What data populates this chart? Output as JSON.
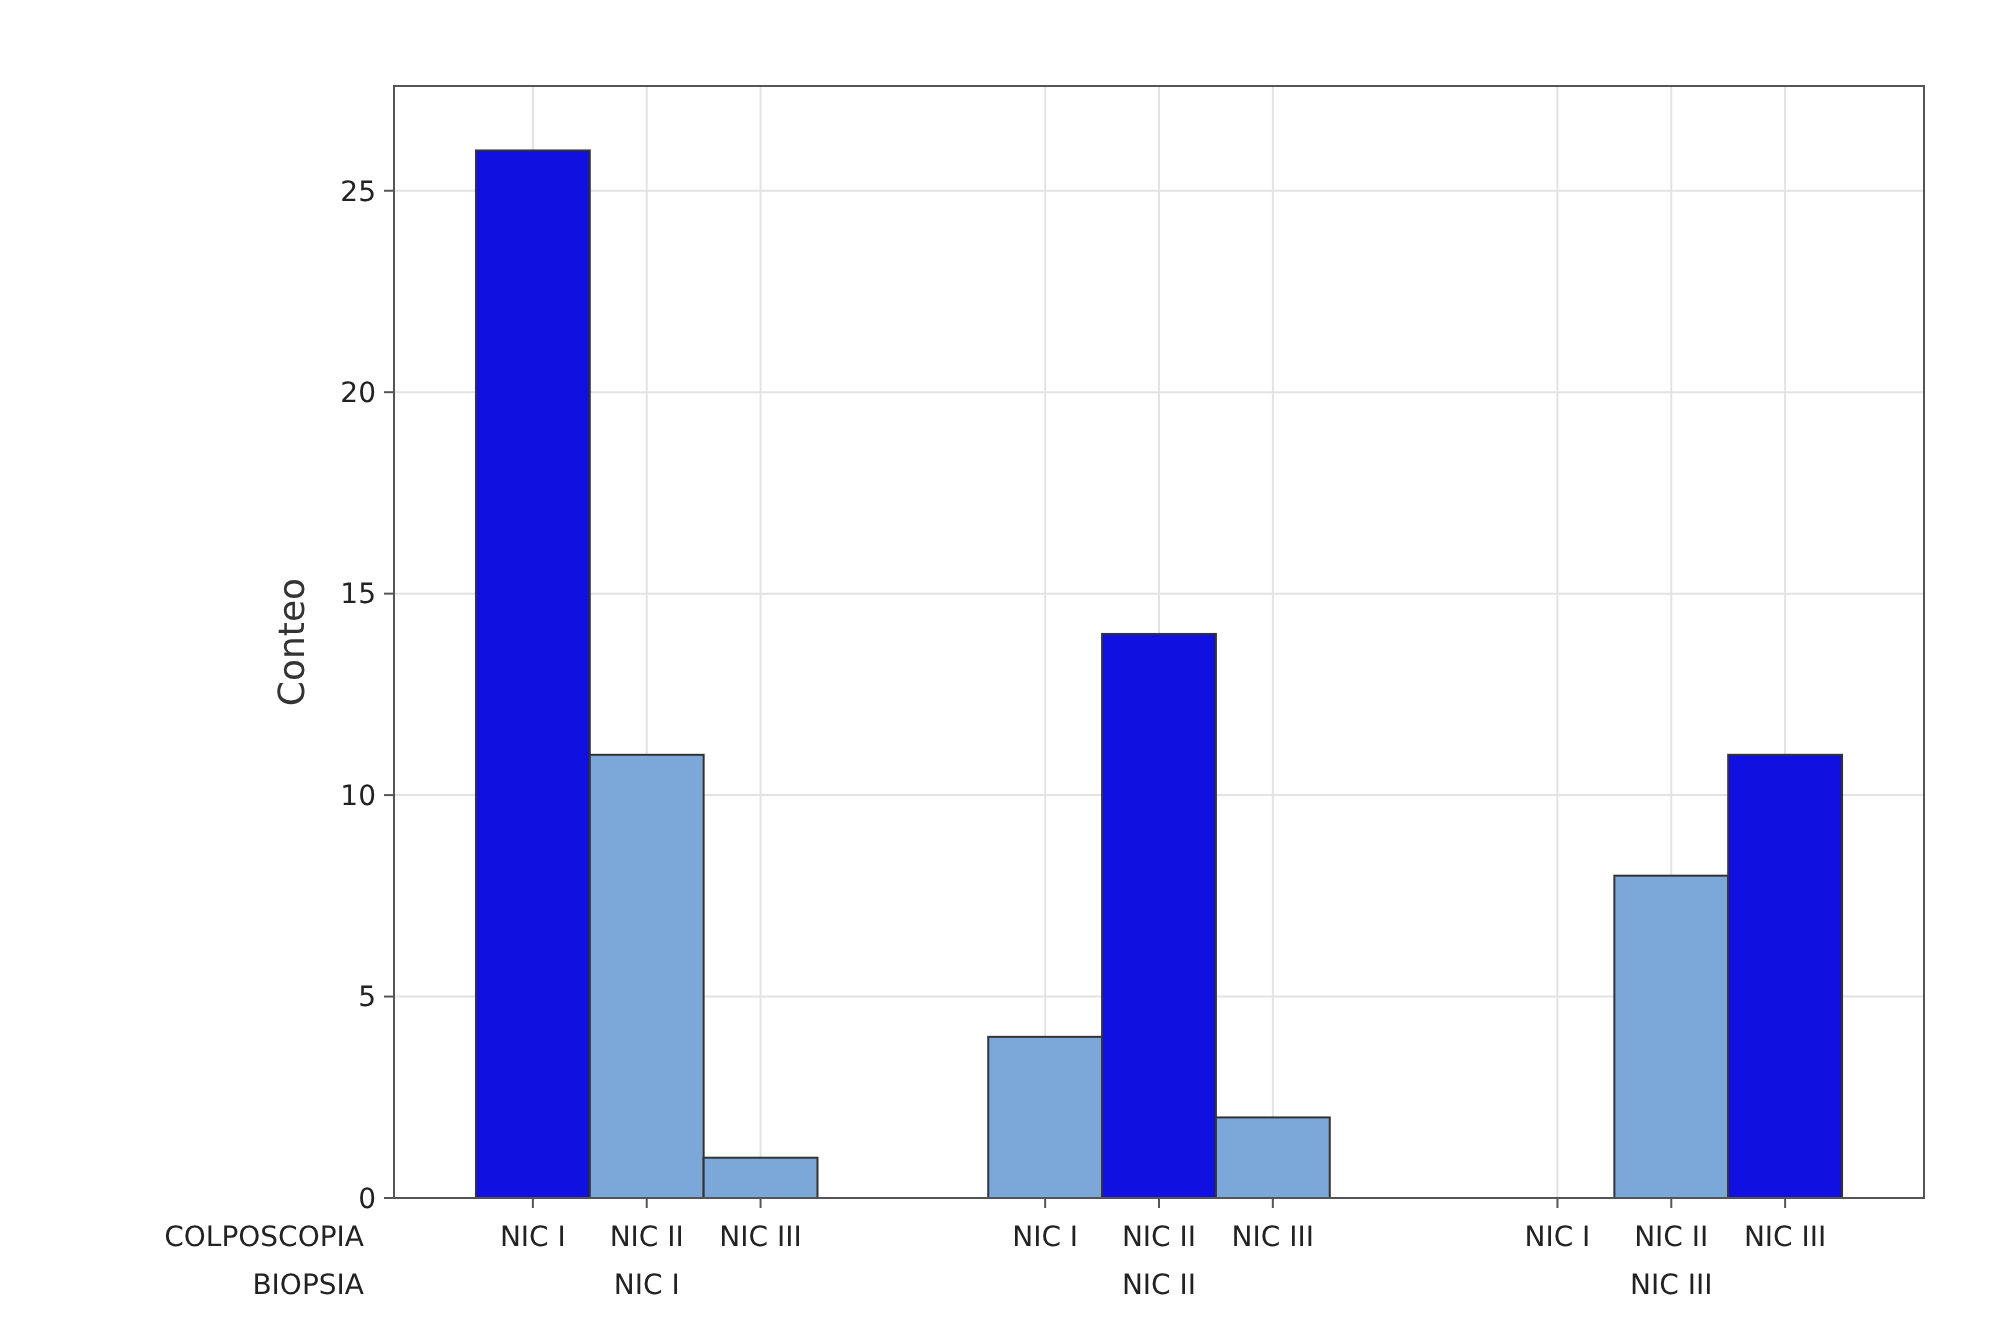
{
  "chart_data": {
    "type": "bar",
    "ylabel": "Conteo",
    "categories": [
      "NIC I",
      "NIC II",
      "NIC III"
    ],
    "series": [
      {
        "name": "NIC I",
        "colors": [
          "#1010e0",
          "#7ba7d9",
          "#7ba7d9"
        ],
        "values": [
          26,
          4,
          0
        ]
      },
      {
        "name": "NIC II",
        "colors": [
          "#7ba7d9",
          "#1010e0",
          "#7ba7d9"
        ],
        "values": [
          11,
          14,
          8
        ]
      },
      {
        "name": "NIC III",
        "colors": [
          "#7ba7d9",
          "#7ba7d9",
          "#1010e0"
        ],
        "values": [
          1,
          2,
          11
        ]
      }
    ],
    "annotations": [
      "COLPOSCOPIA",
      "BIOPSIA"
    ],
    "ylim": [
      0,
      27.6
    ],
    "yticks": [
      0,
      5,
      10,
      15,
      20,
      25
    ],
    "grid": true
  }
}
